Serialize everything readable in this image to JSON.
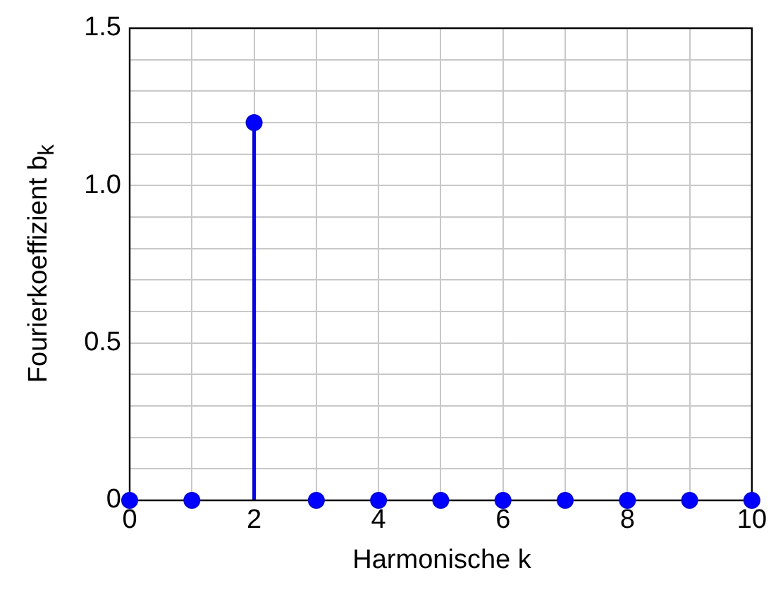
{
  "chart_data": {
    "type": "lollipop",
    "xlabel": "Harmonische k",
    "ylabel": "Fourierkoeffizient b$_{k}$",
    "x": [
      0,
      1,
      2,
      3,
      4,
      5,
      6,
      7,
      8,
      9,
      10
    ],
    "series": [
      {
        "color": "#0000ff",
        "values": [
          0,
          0,
          1.2,
          0,
          0,
          0,
          0,
          0,
          0,
          0,
          0
        ]
      }
    ],
    "xlim": [
      0,
      10
    ],
    "xticks": [
      0,
      {
        "value": 1,
        "label": null
      },
      2,
      {
        "value": 3,
        "label": null
      },
      4,
      {
        "value": 5,
        "label": null
      },
      6,
      {
        "value": 7,
        "label": null
      },
      8,
      {
        "value": 9,
        "label": null
      },
      10
    ],
    "ylim": [
      0,
      1.5
    ],
    "yticks": [
      0,
      {
        "value": 0.1,
        "label": null
      },
      {
        "value": 0.2,
        "label": null
      },
      {
        "value": 0.3,
        "label": null
      },
      {
        "value": 0.4,
        "label": null
      },
      0.5,
      {
        "value": 0.6,
        "label": null
      },
      {
        "value": 0.7,
        "label": null
      },
      {
        "value": 0.8,
        "label": null
      },
      {
        "value": 0.9,
        "label": null
      },
      {
        "value": 1,
        "label": "1.0"
      },
      {
        "value": 1.1,
        "label": null
      },
      {
        "value": 1.2,
        "label": null
      },
      {
        "value": 1.3,
        "label": null
      },
      {
        "value": 1.4,
        "label": null
      },
      1.5
    ],
    "grid": true,
    "marker": "circle",
    "legend": false
  }
}
